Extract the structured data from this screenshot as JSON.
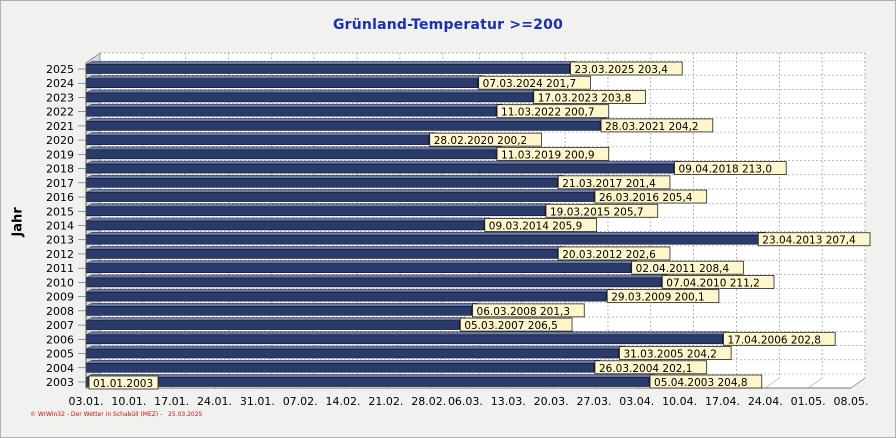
{
  "page": {
    "title": "Grünland-Temperatur  >=200",
    "footer": "© WrWin32 - Der Wetter in Schabüll (MEZ) -   25.03.2025"
  },
  "chart_data": {
    "type": "bar",
    "orientation": "horizontal",
    "title": "Grünland-Temperatur  >=200",
    "ylabel": "Jahr",
    "xlabel": "",
    "x_axis": {
      "unit": "date (day.month.)",
      "min": "03.01.",
      "max": "08.05.",
      "ticks": [
        "03.01.",
        "10.01.",
        "17.01.",
        "24.01.",
        "31.01.",
        "07.02.",
        "14.02.",
        "21.02.",
        "28.02.",
        "06.03.",
        "13.03.",
        "20.03.",
        "27.03.",
        "03.04.",
        "10.04.",
        "17.04.",
        "24.04.",
        "01.05.",
        "08.05."
      ]
    },
    "grid": true,
    "colors": {
      "bar": "#2a3a6a",
      "label_bg": "#fff7cc",
      "highlight": "#fff066"
    },
    "categories": [
      "2003",
      "2004",
      "2005",
      "2006",
      "2007",
      "2008",
      "2009",
      "2010",
      "2011",
      "2012",
      "2013",
      "2014",
      "2015",
      "2016",
      "2017",
      "2018",
      "2019",
      "2020",
      "2021",
      "2022",
      "2023",
      "2024",
      "2025"
    ],
    "series": [
      {
        "dates": [
          "05.04.2003",
          "26.03.2004",
          "31.03.2005",
          "17.04.2006",
          "05.03.2007",
          "06.03.2008",
          "29.03.2009",
          "07.04.2010",
          "02.04.2011",
          "20.03.2012",
          "23.04.2013",
          "09.03.2014",
          "19.03.2015",
          "26.03.2016",
          "21.03.2017",
          "09.04.2018",
          "11.03.2019",
          "28.02.2020",
          "28.03.2021",
          "11.03.2022",
          "17.03.2023",
          "07.03.2024",
          "23.03.2025"
        ],
        "values": [
          "204,8",
          "202,1",
          "204,2",
          "202,8",
          "206,5",
          "201,3",
          "200,1",
          "211,2",
          "208,4",
          "202,6",
          "207,4",
          "205,9",
          "205,7",
          "205,4",
          "201,4",
          "213,0",
          "200,9",
          "200,2",
          "204,2",
          "200,7",
          "203,8",
          "201,7",
          "203,4"
        ]
      }
    ],
    "annotations": [
      "01.01.2003"
    ]
  }
}
